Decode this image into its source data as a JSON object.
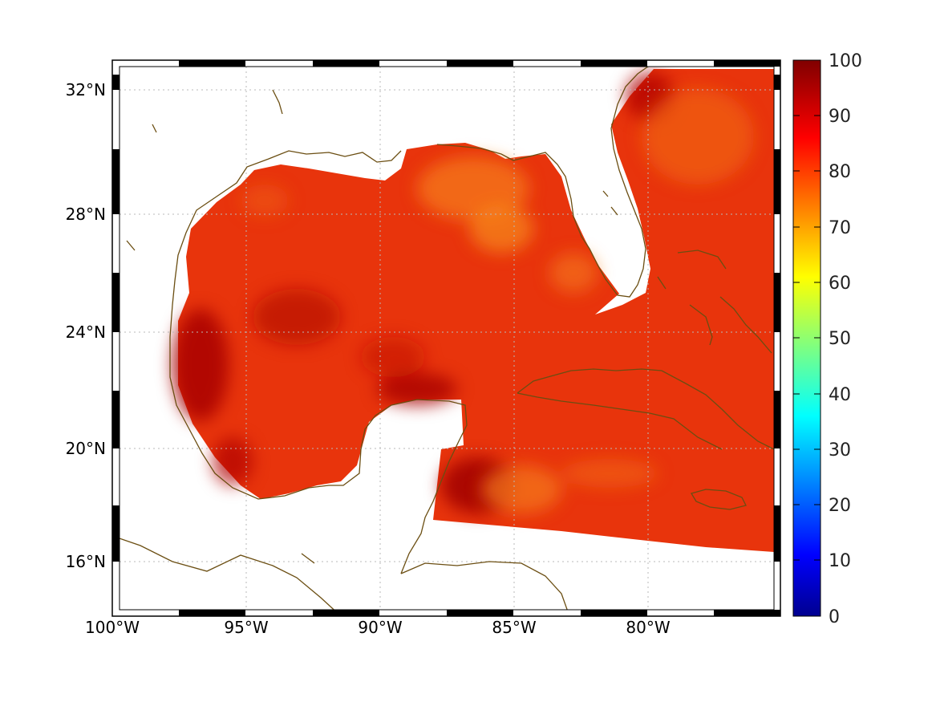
{
  "map": {
    "projection": "equidistant-cylindrical",
    "lon_range": [
      -100,
      -75
    ],
    "lat_range": [
      14.2,
      33
    ],
    "lon_ticks": [
      {
        "value": -100,
        "label": "100°W"
      },
      {
        "value": -95,
        "label": "95°W"
      },
      {
        "value": -90,
        "label": "90°W"
      },
      {
        "value": -85,
        "label": "85°W"
      },
      {
        "value": -80,
        "label": "80°W"
      }
    ],
    "lat_ticks": [
      {
        "value": 32,
        "label": "32°N"
      },
      {
        "value": 28,
        "label": "28°N"
      },
      {
        "value": 24,
        "label": "24°N"
      },
      {
        "value": 20,
        "label": "20°N"
      },
      {
        "value": 16,
        "label": "16°N"
      }
    ],
    "grid": "dotted",
    "coastline_color": "#6b4e12",
    "field_dominant_color": "#e8340c"
  },
  "colorbar": {
    "colormap": "jet",
    "range": [
      0,
      100
    ],
    "tick_labels": [
      "100",
      "90",
      "80",
      "70",
      "60",
      "50",
      "40",
      "30",
      "20",
      "10",
      "0"
    ]
  }
}
